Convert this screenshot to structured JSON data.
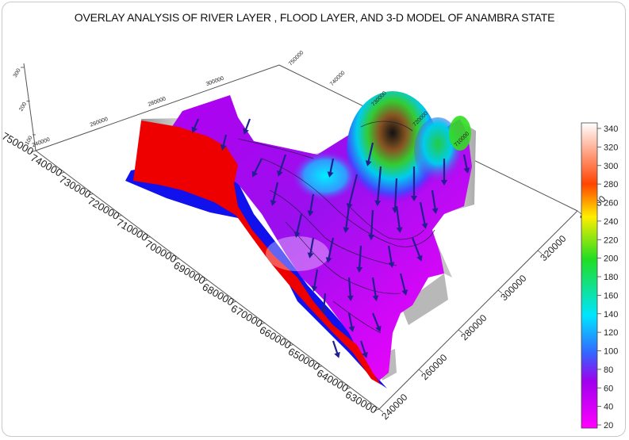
{
  "chart_data": {
    "type": "surface-3d",
    "title": "OVERLAY ANALYSIS OF RIVER LAYER , FLOOD LAYER, AND 3-D MODEL OF ANAMBRA STATE",
    "xlabel": "",
    "ylabel": "",
    "zlabel": "",
    "x_ticks": [
      "240000",
      "260000",
      "280000",
      "300000",
      "320000",
      "340000"
    ],
    "y_ticks": [
      "630000",
      "640000",
      "650000",
      "660000",
      "670000",
      "680000",
      "690000",
      "700000",
      "710000",
      "720000",
      "730000",
      "740000",
      "750000"
    ],
    "back_x_ticks": [
      "240000",
      "260000",
      "280000",
      "300000"
    ],
    "back_y_ticks": [
      "750000",
      "740000",
      "730000",
      "720000",
      "710000"
    ],
    "z_ticks": [
      "100",
      "200",
      "300"
    ],
    "colorbar": {
      "ticks": [
        "340",
        "320",
        "300",
        "280",
        "260",
        "240",
        "220",
        "200",
        "180",
        "160",
        "140",
        "120",
        "100",
        "80",
        "60",
        "40",
        "20"
      ],
      "min": 20,
      "max": 345,
      "stops": [
        {
          "v": 20,
          "c": "#ff00ff"
        },
        {
          "v": 70,
          "c": "#a000ee"
        },
        {
          "v": 100,
          "c": "#3366ff"
        },
        {
          "v": 140,
          "c": "#00e5ff"
        },
        {
          "v": 200,
          "c": "#22dd22"
        },
        {
          "v": 245,
          "c": "#ffee00"
        },
        {
          "v": 280,
          "c": "#ff4400"
        },
        {
          "v": 310,
          "c": "#ff9977"
        },
        {
          "v": 345,
          "c": "#ffffff"
        }
      ]
    },
    "layers": {
      "flood_color": "#ee0000",
      "river_color": "#1111ee",
      "flow_arrow_color": "#202090"
    }
  }
}
